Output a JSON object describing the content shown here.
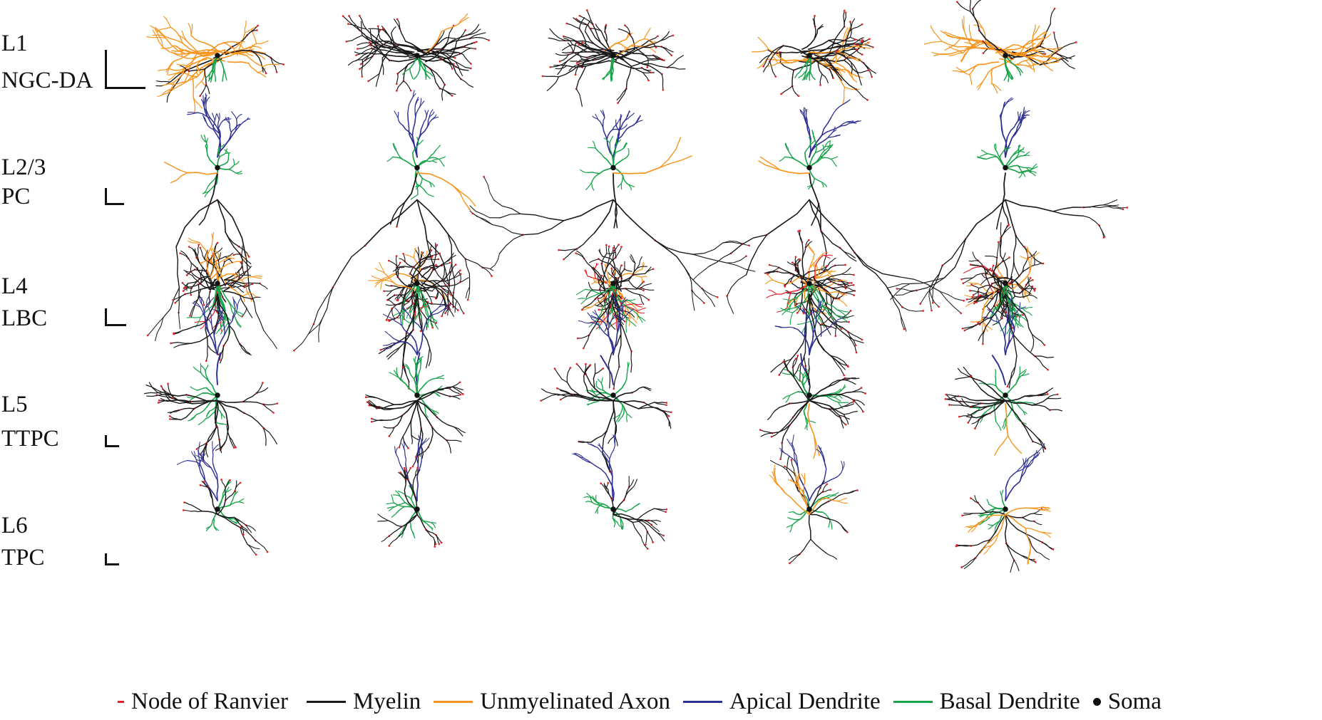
{
  "colors": {
    "node_of_ranvier": "#e8202a",
    "myelin": "#1a1a1a",
    "unmyelinated_axon": "#f7941d",
    "apical_dendrite": "#2e3192",
    "basal_dendrite": "#17a34a",
    "soma": "#111111"
  },
  "rows": [
    {
      "line1": "L1",
      "line2": "NGC-DA",
      "morph": "ngc"
    },
    {
      "line1": "L2/3",
      "line2": "PC",
      "morph": "pc23"
    },
    {
      "line1": "L4",
      "line2": "LBC",
      "morph": "lbc"
    },
    {
      "line1": "L5",
      "line2": "TTPC",
      "morph": "ttpc"
    },
    {
      "line1": "L6",
      "line2": "TPC",
      "morph": "tpc"
    }
  ],
  "legend": [
    {
      "label": "Node of Ranvier",
      "color": "#e8202a",
      "shape": "dash"
    },
    {
      "label": "Myelin",
      "color": "#1a1a1a",
      "shape": "line"
    },
    {
      "label": "Unmyelinated Axon",
      "color": "#f7941d",
      "shape": "line"
    },
    {
      "label": "Apical Dendrite",
      "color": "#2e3192",
      "shape": "line"
    },
    {
      "label": "Basal Dendrite",
      "color": "#17a34a",
      "shape": "line"
    },
    {
      "label": "Soma",
      "color": "#111111",
      "shape": "dot"
    }
  ]
}
